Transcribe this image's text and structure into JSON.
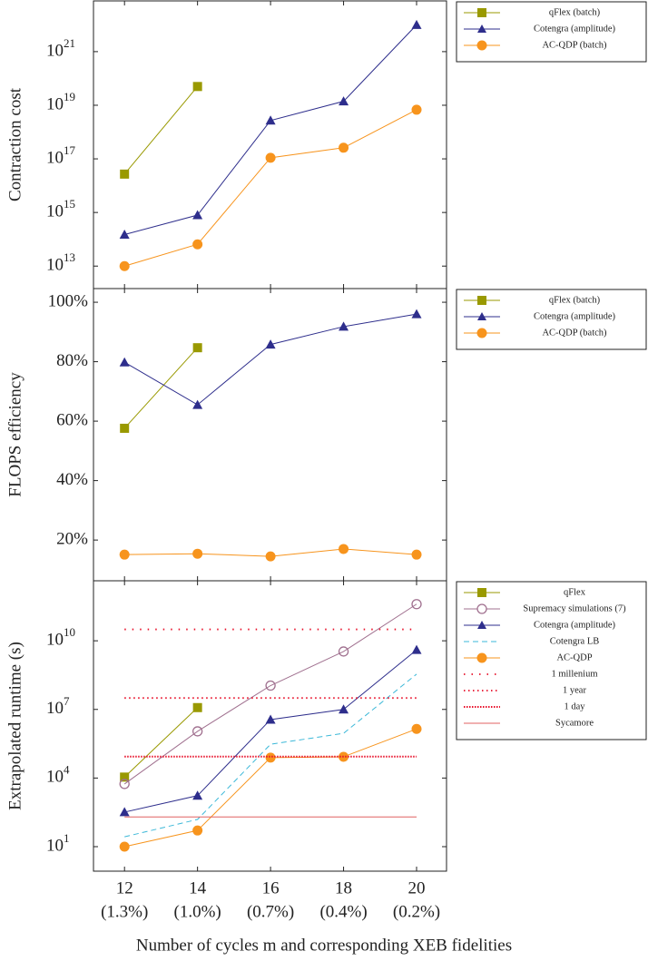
{
  "chart_data": [
    {
      "type": "line",
      "ylabel": "Contraction cost",
      "log_y": true,
      "x": [
        12,
        14,
        16,
        18,
        20
      ],
      "xlim": [
        11.15,
        20.82
      ],
      "ylim": [
        1450000000000.0,
        7.8e+22
      ],
      "yticks": [
        {
          "value": 10000000000000.0,
          "label": "10",
          "power": "13"
        },
        {
          "value": 1000000000000000.0,
          "label": "10",
          "power": "15"
        },
        {
          "value": 1e+17,
          "label": "10",
          "power": "17"
        },
        {
          "value": 1e+19,
          "label": "10",
          "power": "19"
        },
        {
          "value": 1e+21,
          "label": "10",
          "power": "21"
        }
      ],
      "legend": "outside-right",
      "series": [
        {
          "name": "qFlex (batch)",
          "color": "#999900",
          "marker": "square",
          "values": [
            2.7e+16,
            5e+19,
            null,
            null,
            null
          ]
        },
        {
          "name": "Cotengra (amplitude)",
          "color": "#2e2e8c",
          "marker": "triangle",
          "values": [
            150000000000000.0,
            800000000000000.0,
            2.7e+18,
            1.4e+19,
            1e+22
          ]
        },
        {
          "name": "AC-QDP (batch)",
          "color": "#f7941d",
          "marker": "circle",
          "values": [
            10000000000000.0,
            65000000000000.0,
            1.1e+17,
            2.6e+17,
            6.8e+18
          ]
        }
      ]
    },
    {
      "type": "line",
      "ylabel": "FLOPS efficiency",
      "log_y": false,
      "x": [
        12,
        14,
        16,
        18,
        20
      ],
      "xlim": [
        11.15,
        20.82
      ],
      "ylim": [
        6.3,
        104.6
      ],
      "yticks": [
        {
          "value": 20,
          "label": "20%"
        },
        {
          "value": 40,
          "label": "40%"
        },
        {
          "value": 60,
          "label": "60%"
        },
        {
          "value": 80,
          "label": "80%"
        },
        {
          "value": 100,
          "label": "100%"
        }
      ],
      "legend": "outside-right",
      "series": [
        {
          "name": "qFlex (batch)",
          "color": "#999900",
          "marker": "square",
          "values": [
            57.6,
            84.7,
            null,
            null,
            null
          ]
        },
        {
          "name": "Cotengra (amplitude)",
          "color": "#2e2e8c",
          "marker": "triangle",
          "values": [
            79.8,
            65.5,
            85.8,
            91.8,
            96.0
          ]
        },
        {
          "name": "AC-QDP (batch)",
          "color": "#f7941d",
          "marker": "circle",
          "values": [
            15.1,
            15.4,
            14.5,
            17.0,
            15.1
          ]
        }
      ]
    },
    {
      "type": "line",
      "ylabel": "Extrapolated runtime (s)",
      "log_y": true,
      "xlabel": "Number of cycles m and corresponding XEB fidelities",
      "x": [
        12,
        14,
        16,
        18,
        20
      ],
      "xlim": [
        11.15,
        20.82
      ],
      "ylim": [
        0.85,
        4200000000000.0
      ],
      "xticks": [
        12,
        14,
        16,
        18,
        20
      ],
      "xtick_sublabels": [
        "(1.3%)",
        "(1.0%)",
        "(0.7%)",
        "(0.4%)",
        "(0.2%)"
      ],
      "yticks": [
        {
          "value": 10,
          "label": "10",
          "power": "1"
        },
        {
          "value": 10000.0,
          "label": "10",
          "power": "4"
        },
        {
          "value": 10000000.0,
          "label": "10",
          "power": "7"
        },
        {
          "value": 10000000000.0,
          "label": "10",
          "power": "10"
        }
      ],
      "legend": "outside-right",
      "series": [
        {
          "name": "qFlex",
          "color": "#999900",
          "marker": "square",
          "values": [
            11000.0,
            12000000.0,
            null,
            null,
            null
          ]
        },
        {
          "name": "Supremacy simulations (7)",
          "color": "#a0708f",
          "marker": "circle-open",
          "values": [
            5500.0,
            1100000.0,
            110000000.0,
            3400000000.0,
            400000000000.0
          ]
        },
        {
          "name": "Cotengra (amplitude)",
          "color": "#2e2e8c",
          "marker": "triangle",
          "values": [
            324,
            1700.0,
            3600000.0,
            10000000.0,
            4000000000.0
          ]
        },
        {
          "name": "Cotengra LB",
          "color": "#3bb8d8",
          "dash": "6 4",
          "values": [
            27,
            155,
            300000.0,
            900000.0,
            350000000.0
          ]
        },
        {
          "name": "AC-QDP",
          "color": "#f7941d",
          "marker": "circle",
          "values": [
            10,
            51,
            78000.0,
            85000.0,
            1400000.0
          ]
        },
        {
          "name": "1 millenium",
          "color": "#e8102a",
          "dash": "1.5 7",
          "width": 1.8,
          "values": [
            31500000000.0,
            31500000000.0,
            31500000000.0,
            31500000000.0,
            31500000000.0
          ]
        },
        {
          "name": "1 year",
          "color": "#e8102a",
          "dash": "1.5 3.5",
          "width": 1.8,
          "values": [
            31500000.0,
            31500000.0,
            31500000.0,
            31500000.0,
            31500000.0
          ]
        },
        {
          "name": "1 day",
          "color": "#e8102a",
          "dash": "1.5 1.5",
          "width": 2,
          "values": [
            86400,
            86400,
            86400,
            86400,
            86400
          ]
        },
        {
          "name": "Sycamore",
          "color": "#e06060",
          "values": [
            200,
            200,
            200,
            200,
            200
          ]
        }
      ]
    }
  ]
}
